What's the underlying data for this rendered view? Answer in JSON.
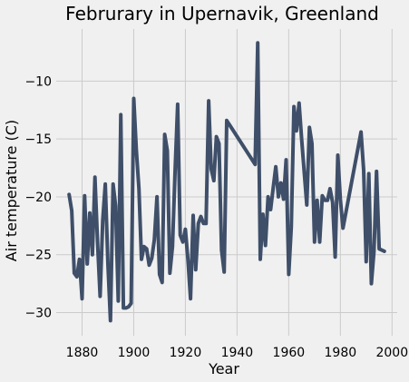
{
  "chart_data": {
    "type": "line",
    "title": "Februrary in Upernavik, Greenland",
    "xlabel": "Year",
    "ylabel": "Air temperature (C)",
    "xlim": [
      1870,
      2002
    ],
    "ylim": [
      -32,
      -5.5
    ],
    "grid": true,
    "xticks": [
      1880,
      1900,
      1920,
      1940,
      1960,
      1980,
      2000
    ],
    "yticks": [
      -30,
      -25,
      -20,
      -15,
      -10
    ],
    "colors": {
      "line": "#3f4f69",
      "background": "#f0f0f0",
      "grid": "#cbcbcb"
    },
    "x": [
      1875,
      1876,
      1877,
      1878,
      1879,
      1880,
      1881,
      1882,
      1883,
      1884,
      1885,
      1886,
      1887,
      1888,
      1889,
      1890,
      1891,
      1892,
      1893,
      1894,
      1895,
      1896,
      1897,
      1898,
      1899,
      1900,
      1901,
      1902,
      1903,
      1904,
      1905,
      1906,
      1907,
      1908,
      1909,
      1910,
      1911,
      1912,
      1913,
      1914,
      1915,
      1916,
      1917,
      1918,
      1919,
      1920,
      1921,
      1922,
      1923,
      1924,
      1925,
      1926,
      1927,
      1928,
      1929,
      1930,
      1931,
      1932,
      1933,
      1934,
      1935,
      1936,
      1947,
      1948,
      1949,
      1950,
      1951,
      1952,
      1953,
      1954,
      1955,
      1956,
      1957,
      1958,
      1959,
      1960,
      1961,
      1962,
      1963,
      1964,
      1965,
      1966,
      1967,
      1968,
      1969,
      1970,
      1971,
      1972,
      1973,
      1974,
      1975,
      1976,
      1977,
      1978,
      1979,
      1980,
      1981,
      1988,
      1989,
      1990,
      1991,
      1992,
      1993,
      1994,
      1995,
      1996,
      1997
    ],
    "values": [
      -19.8,
      -21.2,
      -26.6,
      -26.9,
      -25.4,
      -28.8,
      -19.9,
      -25.8,
      -21.4,
      -25.0,
      -18.3,
      -24.0,
      -28.6,
      -22.0,
      -18.9,
      -25.8,
      -30.7,
      -18.9,
      -20.8,
      -29.0,
      -12.9,
      -29.6,
      -29.6,
      -29.5,
      -29.2,
      -11.5,
      -15.9,
      -19.3,
      -25.4,
      -24.3,
      -24.5,
      -25.9,
      -25.3,
      -23.7,
      -20.0,
      -26.7,
      -27.4,
      -14.6,
      -16.0,
      -26.6,
      -24.3,
      -17.9,
      -12.0,
      -23.3,
      -23.9,
      -22.8,
      -25.5,
      -28.8,
      -21.6,
      -26.3,
      -22.3,
      -21.7,
      -22.3,
      -22.3,
      -11.7,
      -17.6,
      -18.6,
      -14.8,
      -15.4,
      -24.6,
      -26.5,
      -13.4,
      -17.2,
      -6.7,
      -25.4,
      -21.5,
      -24.2,
      -20.0,
      -21.1,
      -19.2,
      -17.4,
      -20.0,
      -18.8,
      -20.2,
      -16.8,
      -26.7,
      -22.6,
      -12.2,
      -14.3,
      -11.9,
      -15.0,
      -17.9,
      -20.7,
      -14.0,
      -15.4,
      -23.9,
      -20.3,
      -23.9,
      -19.9,
      -20.3,
      -20.3,
      -19.3,
      -20.5,
      -25.2,
      -16.4,
      -20.2,
      -22.7,
      -14.4,
      -17.7,
      -25.6,
      -18.0,
      -27.5,
      -24.7,
      -17.8,
      -24.5,
      -24.6,
      -24.7
    ]
  }
}
